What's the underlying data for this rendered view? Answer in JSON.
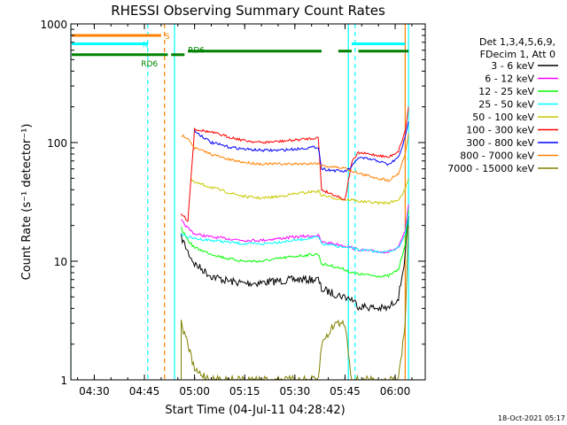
{
  "chart_data": {
    "type": "line",
    "title": "RHESSI Observing Summary Count Rates",
    "xlabel": "Start Time (04-Jul-11 04:28:42)",
    "ylabel": "Count Rate (s⁻¹ detector⁻¹)",
    "y_scale": "log",
    "ylim": [
      1,
      1000
    ],
    "xlim": [
      "04:23",
      "06:09"
    ],
    "x_ticks": [
      "04:30",
      "04:45",
      "05:00",
      "05:15",
      "05:30",
      "05:45",
      "06:00"
    ],
    "y_ticks": [
      "1",
      "10",
      "100",
      "1000"
    ],
    "legend_header": [
      "Det 1,3,4,5,6,9,",
      "FDecim 1, Att 0"
    ],
    "legend_position": "right",
    "series": [
      {
        "name": "3 - 6 keV",
        "color": "#000000",
        "x": [
          "04:56",
          "04:58",
          "05:00",
          "05:05",
          "05:10",
          "05:15",
          "05:20",
          "05:25",
          "05:30",
          "05:37",
          "05:38",
          "05:42",
          "05:45",
          "05:47",
          "05:49",
          "05:55",
          "05:58",
          "06:01",
          "06:03",
          "06:04"
        ],
        "y": [
          16,
          12,
          9.5,
          7.5,
          6.8,
          6.5,
          6.6,
          6.8,
          7.0,
          7.0,
          5.8,
          5.3,
          5.0,
          4.8,
          4.2,
          4.0,
          4.0,
          5.0,
          11,
          24
        ]
      },
      {
        "name": "6 - 12 keV",
        "color": "#ff00ff",
        "x": [
          "04:56",
          "04:58",
          "05:00",
          "05:05",
          "05:10",
          "05:15",
          "05:20",
          "05:25",
          "05:30",
          "05:37",
          "05:38",
          "05:42",
          "05:45",
          "05:47",
          "05:49",
          "05:55",
          "05:58",
          "06:01",
          "06:03",
          "06:04"
        ],
        "y": [
          22,
          19,
          17,
          16,
          15.5,
          15,
          15,
          15.5,
          16,
          16.5,
          14.5,
          14,
          13.5,
          13,
          12.5,
          12,
          12,
          13,
          18,
          30
        ]
      },
      {
        "name": "12 - 25 keV",
        "color": "#00ff00",
        "x": [
          "04:56",
          "04:58",
          "05:00",
          "05:05",
          "05:10",
          "05:15",
          "05:20",
          "05:25",
          "05:30",
          "05:37",
          "05:38",
          "05:42",
          "05:45",
          "05:47",
          "05:49",
          "05:55",
          "05:58",
          "06:01",
          "06:03",
          "06:04"
        ],
        "y": [
          19,
          15,
          13,
          11.5,
          10.5,
          10,
          10,
          10.5,
          11,
          11.5,
          9.5,
          9.0,
          8.5,
          8.0,
          7.8,
          7.5,
          7.5,
          8.5,
          14,
          27
        ]
      },
      {
        "name": "25 - 50 keV",
        "color": "#00ffff",
        "x": [
          "04:56",
          "04:58",
          "05:00",
          "05:05",
          "05:10",
          "05:15",
          "05:20",
          "05:25",
          "05:30",
          "05:37",
          "05:38",
          "05:42",
          "05:45",
          "05:47",
          "05:49",
          "05:55",
          "05:58",
          "06:01",
          "06:03",
          "06:04"
        ],
        "y": [
          17,
          16,
          15.5,
          15,
          14.5,
          14,
          14,
          14.5,
          15,
          16,
          14,
          13.5,
          13,
          13,
          12.5,
          12,
          12,
          13,
          17,
          25
        ]
      },
      {
        "name": "50 - 100 keV",
        "color": "#c8c800",
        "x": [
          "04:59",
          "05:00",
          "05:05",
          "05:10",
          "05:15",
          "05:20",
          "05:25",
          "05:30",
          "05:37",
          "05:38",
          "05:42",
          "05:45",
          "05:47",
          "05:49",
          "05:55",
          "05:58",
          "06:01",
          "06:03",
          "06:04"
        ],
        "y": [
          48,
          46,
          42,
          38,
          35,
          34,
          35,
          37,
          39,
          36,
          34,
          33,
          33,
          32,
          31,
          31,
          33,
          40,
          50
        ]
      },
      {
        "name": "100 - 300 keV",
        "color": "#ff0000",
        "x": [
          "04:56",
          "04:58",
          "05:00",
          "05:05",
          "05:10",
          "05:15",
          "05:20",
          "05:25",
          "05:30",
          "05:37",
          "05:38",
          "05:42",
          "05:45",
          "05:47",
          "05:49",
          "05:55",
          "05:58",
          "06:01",
          "06:03",
          "06:04"
        ],
        "y": [
          25,
          22,
          130,
          122,
          112,
          104,
          100,
          102,
          105,
          110,
          40,
          36,
          33,
          68,
          82,
          78,
          75,
          85,
          125,
          200
        ]
      },
      {
        "name": "300 - 800 keV",
        "color": "#0000ff",
        "x": [
          "05:00",
          "05:05",
          "05:10",
          "05:15",
          "05:20",
          "05:25",
          "05:30",
          "05:37",
          "05:38",
          "05:42",
          "05:45",
          "05:47",
          "05:49",
          "05:55",
          "05:58",
          "06:01",
          "06:03",
          "06:04"
        ],
        "y": [
          125,
          100,
          92,
          88,
          86,
          86,
          88,
          92,
          60,
          58,
          57,
          62,
          75,
          70,
          65,
          75,
          110,
          150
        ]
      },
      {
        "name": "800 - 7000 keV",
        "color": "#ff8000",
        "x": [
          "04:56",
          "04:58",
          "05:00",
          "05:05",
          "05:10",
          "05:15",
          "05:20",
          "05:25",
          "05:30",
          "05:37",
          "05:38",
          "05:42",
          "05:45",
          "05:47",
          "05:49",
          "05:55",
          "05:58",
          "06:01",
          "06:03",
          "06:04"
        ],
        "y": [
          115,
          110,
          90,
          80,
          72,
          68,
          66,
          66,
          66,
          67,
          64,
          62,
          61,
          58,
          55,
          50,
          48,
          55,
          80,
          120
        ]
      },
      {
        "name": "7000 - 15000 keV",
        "color": "#808000",
        "x": [
          "04:56",
          "04:56",
          "04:58",
          "05:00",
          "05:05",
          "05:10",
          "05:15",
          "05:20",
          "05:25",
          "05:30",
          "05:37",
          "05:38",
          "05:42",
          "05:45",
          "05:47",
          "05:49",
          "05:55",
          "05:58",
          "06:01",
          "06:03",
          "06:04"
        ],
        "y": [
          1.0,
          3.0,
          2.0,
          1.2,
          1.0,
          1.0,
          1.0,
          1.0,
          1.0,
          1.0,
          1.0,
          2.0,
          3.0,
          3.0,
          1.0,
          1.0,
          1.0,
          1.0,
          1.0,
          3.0,
          20
        ]
      }
    ],
    "state_bars": [
      {
        "label": "S",
        "color": "#ff8000",
        "level": 800,
        "segments": [
          [
            "04:23",
            "04:50"
          ]
        ]
      },
      {
        "label": "N",
        "color": "#00ffff",
        "level": 680,
        "segments": [
          [
            "04:23",
            "04:46"
          ],
          [
            "05:47",
            "06:03"
          ]
        ]
      },
      {
        "label": "RD6",
        "color": "#008000",
        "level": 550,
        "segments": [
          [
            "04:23",
            "04:52"
          ],
          [
            "04:53",
            "04:57"
          ]
        ]
      },
      {
        "label": "RD6",
        "color": "#008000",
        "level": 590,
        "segments": [
          [
            "04:58",
            "05:38"
          ],
          [
            "05:43",
            "05:47"
          ],
          [
            "05:49",
            "06:04"
          ]
        ]
      }
    ],
    "vlines": [
      {
        "x": "04:23",
        "color": "#00ffff",
        "style": "solid"
      },
      {
        "x": "04:46",
        "color": "#00ffff",
        "style": "dashed"
      },
      {
        "x": "04:51",
        "color": "#ff8000",
        "style": "dashed"
      },
      {
        "x": "04:54",
        "color": "#00ffff",
        "style": "solid"
      },
      {
        "x": "05:46",
        "color": "#00ffff",
        "style": "solid"
      },
      {
        "x": "05:48",
        "color": "#00ffff",
        "style": "dashed"
      },
      {
        "x": "06:03",
        "color": "#ff8000",
        "style": "solid"
      },
      {
        "x": "06:04",
        "color": "#00ffff",
        "style": "solid"
      }
    ],
    "grid": false
  },
  "footer_timestamp": "18-Oct-2021 05:17"
}
